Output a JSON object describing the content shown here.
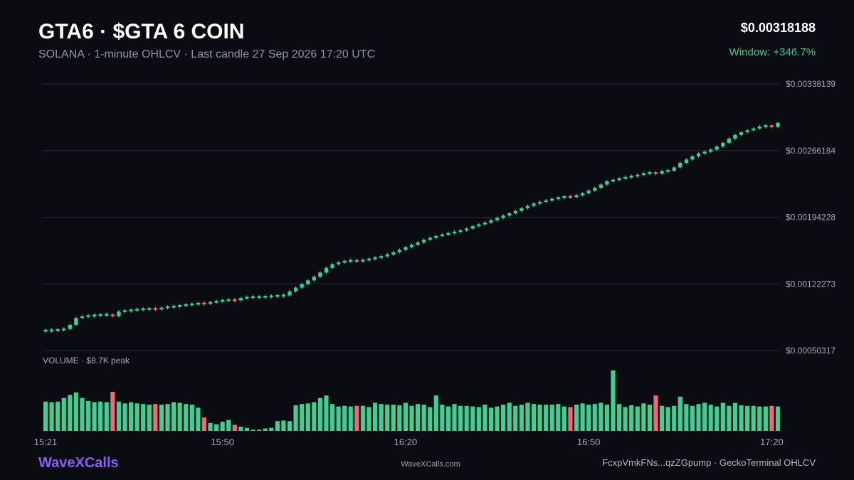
{
  "header": {
    "title": "GTA6 · $GTA 6 COIN",
    "subtitle": "SOLANA · 1-minute OHLCV · Last candle 27 Sep 2026 17:20 UTC",
    "price": "$0.00318188",
    "change": "Window: +346.7%"
  },
  "footer": {
    "brand": "WaveXCalls",
    "site": "WaveXCalls.com",
    "source": "FcxpVmkFNs...qzZGpump · GeckoTerminal OHLCV"
  },
  "colors": {
    "background": "#0b0c12",
    "up": "#3ecf92",
    "down": "#ee6a78",
    "grid": "#262835",
    "brand": "#8b5cf6",
    "change": "#3ec98f"
  },
  "chart_data": {
    "type": "candlestick",
    "interval": "1m",
    "ylim": [
      0.00050317,
      0.00338139
    ],
    "y_ticks": [
      "$0.00338139",
      "$0.00266184",
      "$0.00194228",
      "$0.00122273",
      "$0.00050317"
    ],
    "x_ticks": [
      "15:21",
      "15:50",
      "16:20",
      "16:50",
      "17:20"
    ],
    "x_tick_positions": [
      0,
      29,
      59,
      89,
      119
    ],
    "volume_label": "VOLUME · $8.7K peak",
    "volume_peak": 8700,
    "grid": true,
    "series": [
      {
        "name": "price",
        "close": [
          0.00072,
          0.000722,
          0.000726,
          0.000736,
          0.00078,
          0.000855,
          0.000872,
          0.000878,
          0.000885,
          0.000888,
          0.000892,
          0.000875,
          0.000925,
          0.000932,
          0.00094,
          0.000948,
          0.00095,
          0.000955,
          0.00095,
          0.000965,
          0.000975,
          0.00098,
          0.00099,
          0.000998,
          0.001005,
          0.001012,
          0.00101,
          0.001025,
          0.001035,
          0.001045,
          0.00105,
          0.001045,
          0.00107,
          0.001078,
          0.00108,
          0.001082,
          0.001086,
          0.00109,
          0.001096,
          0.001098,
          0.001142,
          0.001182,
          0.00122,
          0.00126,
          0.0013,
          0.001345,
          0.001395,
          0.001436,
          0.001455,
          0.00147,
          0.001475,
          0.001468,
          0.00148,
          0.001492,
          0.001505,
          0.00152,
          0.00154,
          0.001565,
          0.00159,
          0.00162,
          0.001645,
          0.00167,
          0.0017,
          0.00172,
          0.00174,
          0.001755,
          0.00177,
          0.001785,
          0.0018,
          0.00182,
          0.001845,
          0.001865,
          0.001885,
          0.00191,
          0.001935,
          0.00196,
          0.001985,
          0.00201,
          0.00204,
          0.002065,
          0.00209,
          0.002108,
          0.002125,
          0.00214,
          0.002155,
          0.002165,
          0.00216,
          0.00218,
          0.0022,
          0.00223,
          0.00226,
          0.002295,
          0.00233,
          0.002345,
          0.00236,
          0.002375,
          0.002385,
          0.0024,
          0.002415,
          0.002425,
          0.002412,
          0.00244,
          0.002445,
          0.00248,
          0.00253,
          0.002565,
          0.0026,
          0.00263,
          0.00265,
          0.002672,
          0.002705,
          0.002745,
          0.00279,
          0.00283,
          0.00286,
          0.00288,
          0.0029,
          0.002922,
          0.00293,
          0.002918,
          0.00296
        ],
        "direction": [
          "up",
          "up",
          "up",
          "up",
          "up",
          "up",
          "up",
          "up",
          "up",
          "up",
          "up",
          "down",
          "up",
          "up",
          "up",
          "up",
          "up",
          "up",
          "down",
          "up",
          "up",
          "up",
          "up",
          "up",
          "up",
          "up",
          "down",
          "up",
          "up",
          "up",
          "up",
          "down",
          "up",
          "up",
          "up",
          "up",
          "up",
          "up",
          "up",
          "up",
          "up",
          "up",
          "up",
          "up",
          "up",
          "up",
          "up",
          "up",
          "up",
          "up",
          "up",
          "down",
          "up",
          "up",
          "up",
          "up",
          "up",
          "up",
          "up",
          "up",
          "up",
          "up",
          "up",
          "up",
          "up",
          "up",
          "up",
          "up",
          "up",
          "up",
          "up",
          "up",
          "up",
          "up",
          "up",
          "up",
          "up",
          "up",
          "up",
          "up",
          "up",
          "up",
          "up",
          "up",
          "up",
          "up",
          "down",
          "up",
          "up",
          "up",
          "up",
          "up",
          "up",
          "up",
          "up",
          "up",
          "up",
          "up",
          "up",
          "up",
          "down",
          "up",
          "up",
          "up",
          "up",
          "up",
          "up",
          "up",
          "up",
          "up",
          "up",
          "up",
          "up",
          "up",
          "up",
          "up",
          "up",
          "up",
          "up",
          "down",
          "up"
        ],
        "volume": [
          0.48,
          0.47,
          0.48,
          0.54,
          0.59,
          0.63,
          0.54,
          0.49,
          0.47,
          0.48,
          0.47,
          0.64,
          0.48,
          0.45,
          0.47,
          0.45,
          0.44,
          0.43,
          0.44,
          0.43,
          0.44,
          0.47,
          0.46,
          0.44,
          0.43,
          0.38,
          0.22,
          0.13,
          0.11,
          0.15,
          0.18,
          0.1,
          0.07,
          0.05,
          0.02,
          0.02,
          0.04,
          0.05,
          0.16,
          0.17,
          0.16,
          0.42,
          0.44,
          0.45,
          0.47,
          0.54,
          0.58,
          0.44,
          0.4,
          0.41,
          0.4,
          0.41,
          0.41,
          0.39,
          0.46,
          0.44,
          0.43,
          0.43,
          0.42,
          0.46,
          0.41,
          0.44,
          0.43,
          0.39,
          0.58,
          0.43,
          0.4,
          0.44,
          0.41,
          0.41,
          0.4,
          0.39,
          0.43,
          0.38,
          0.4,
          0.43,
          0.46,
          0.41,
          0.43,
          0.46,
          0.44,
          0.43,
          0.43,
          0.43,
          0.44,
          0.4,
          0.39,
          0.43,
          0.45,
          0.43,
          0.44,
          0.46,
          0.43,
          0.99,
          0.44,
          0.39,
          0.42,
          0.4,
          0.45,
          0.43,
          0.58,
          0.41,
          0.39,
          0.41,
          0.56,
          0.44,
          0.41,
          0.44,
          0.46,
          0.43,
          0.4,
          0.46,
          0.41,
          0.46,
          0.42,
          0.41,
          0.41,
          0.4,
          0.4,
          0.41,
          0.4
        ]
      }
    ]
  }
}
